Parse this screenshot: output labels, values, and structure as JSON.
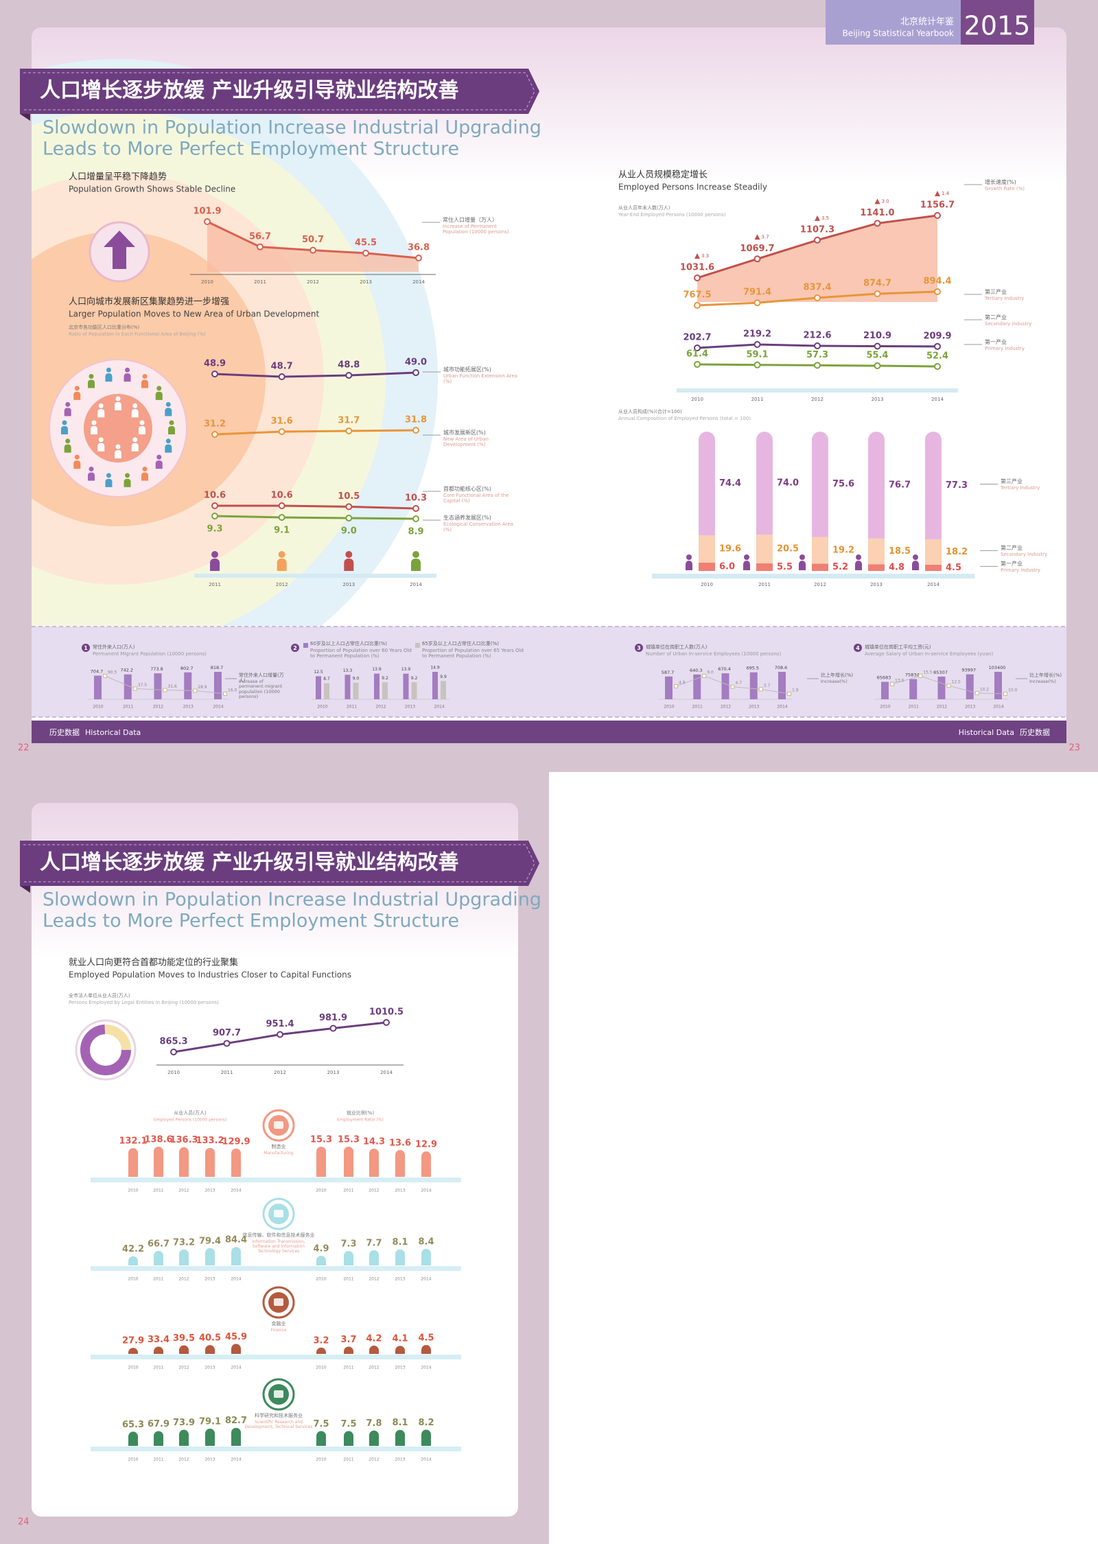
{
  "header": {
    "yearbook_cn": "北京统计年鉴",
    "yearbook_en": "Beijing Statistical Yearbook",
    "year": "2015"
  },
  "pages": [
    {
      "number": "22",
      "title": "人口增长逐步放缓  产业升级引导就业结构改善",
      "subtitle": [
        "Slowdown in Population Increase Industrial Upgrading",
        "Leads to More Perfect Employment Structure"
      ],
      "footer": [
        "历史数据",
        "Historical Data"
      ]
    },
    {
      "number": "23",
      "footer": [
        "Historical Data",
        "历史数据"
      ]
    },
    {
      "number": "24",
      "title": "人口增长逐步放缓  产业升级引导就业结构改善",
      "subtitle": [
        "Slowdown in Population Increase Industrial Upgrading",
        "Leads to More Perfect Employment Structure"
      ]
    }
  ],
  "chart_data": [
    {
      "type": "line",
      "title": "人口增量呈平稳下降趋势",
      "subtitle": "Population Growth Shows Stable Decline",
      "categories": [
        "2010",
        "2011",
        "2012",
        "2013",
        "2014"
      ],
      "series": [
        {
          "name": "常住人口增量（万人）",
          "name_en": "Increase of Permanent Population (10000 persons)",
          "color": "#d9604f",
          "fill": "#f8b9a2",
          "values": [
            101.9,
            56.7,
            50.7,
            45.5,
            36.8
          ]
        }
      ]
    },
    {
      "type": "line",
      "title": "人口向城市发展新区集聚趋势进一步增强",
      "subtitle": "Larger Population Moves to New Area of Urban Development",
      "axis_label": "北京市各功能区人口比重分布(%)",
      "axis_label_en": "Ratio of Population in Each Functional Area of Beijing (%)",
      "categories": [
        "2011",
        "2012",
        "2013",
        "2014"
      ],
      "series": [
        {
          "name": "城市功能拓展区(%)",
          "name_en": "Urban Function Extension Area (%)",
          "color": "#6b3d7e",
          "values": [
            48.9,
            48.7,
            48.8,
            49.0
          ],
          "value_labels": [
            "48.9",
            "48.7",
            "48.8",
            "49.0"
          ]
        },
        {
          "name": "城市发展新区(%)",
          "name_en": "New Area of Urban Development (%)",
          "color": "#e8953a",
          "values": [
            31.2,
            31.6,
            31.7,
            31.8
          ]
        },
        {
          "name": "首都功能核心区(%)",
          "name_en": "Core Functional Area of the Capital (%)",
          "color": "#c0504d",
          "values": [
            10.6,
            10.6,
            10.5,
            10.3
          ]
        },
        {
          "name": "生态涵养发展区(%)",
          "name_en": "Ecological Conservation Area (%)",
          "color": "#7ba33a",
          "values": [
            9.3,
            9.1,
            9.0,
            8.9
          ],
          "value_labels": [
            "9.3",
            "9.1",
            "9.0",
            "8.9"
          ]
        }
      ]
    },
    {
      "type": "line",
      "title": "从业人员规模稳定增长",
      "subtitle": "Employed Persons Increase Steadily",
      "axis_label": "从业人员年末人数(万人)",
      "axis_label_en": "Year-End Employed Persons (10000 persons)",
      "categories": [
        "2010",
        "2011",
        "2012",
        "2013",
        "2014"
      ],
      "series": [
        {
          "color": "#c0504d",
          "fill": "#f7b49a",
          "values": [
            1031.6,
            1069.7,
            1107.3,
            1141.0,
            1156.7
          ],
          "value_labels": [
            "1031.6",
            "1069.7",
            "1107.3",
            "1141.0",
            "1156.7"
          ]
        },
        {
          "name": "增长速度(%)",
          "name_en": "Growth Rate (%)",
          "color": "#c0504d",
          "style": "annotation",
          "values": [
            3.3,
            3.7,
            3.5,
            3.0,
            1.4
          ],
          "value_labels": [
            "3.3",
            "3.7",
            "3.5",
            "3.0",
            "1.4"
          ]
        },
        {
          "name": "第三产业",
          "name_en": "Tertiary Industry",
          "color": "#e8953a",
          "values": [
            767.5,
            791.4,
            837.4,
            874.7,
            894.4
          ]
        },
        {
          "name": "第二产业",
          "name_en": "Secondary Industry",
          "color": "#6b3d7e",
          "values": [
            202.7,
            219.2,
            212.6,
            210.9,
            209.9
          ]
        },
        {
          "name": "第一产业",
          "name_en": "Primary Industry",
          "color": "#7ba33a",
          "values": [
            61.4,
            59.1,
            57.3,
            55.4,
            52.4
          ]
        }
      ]
    },
    {
      "type": "stacked_bar",
      "axis_label": "从业人员构成(%)(合计=100)",
      "axis_label_en": "Annual Composition of Employed Persons (total = 100)",
      "categories": [
        "2010",
        "2011",
        "2012",
        "2013",
        "2014"
      ],
      "series": [
        {
          "name": "第一产业",
          "name_en": "Primary Industry",
          "color": "#f07f73",
          "label_color": "#e04d4d",
          "values": [
            6.0,
            5.5,
            5.2,
            4.8,
            4.5
          ],
          "value_labels": [
            "6.0",
            "5.5",
            "5.2",
            "4.8",
            "4.5"
          ]
        },
        {
          "name": "第二产业",
          "name_en": "Secondary Industry",
          "color": "#fbd0b3",
          "label_color": "#e6922f",
          "values": [
            19.6,
            20.5,
            19.2,
            18.5,
            18.2
          ]
        },
        {
          "name": "第三产业",
          "name_en": "Tertiary Industry",
          "color": "#e6b6e0",
          "label_color": "#7d3b86",
          "values": [
            74.4,
            74.0,
            75.6,
            76.7,
            77.3
          ],
          "value_labels": [
            "74.4",
            "74.0",
            "75.6",
            "76.7",
            "77.3"
          ]
        }
      ]
    },
    {
      "type": "bar_line",
      "marker": "1",
      "categories": [
        "2010",
        "2011",
        "2012",
        "2013",
        "2014"
      ],
      "series": [
        {
          "name": "常住外来人口(万人)",
          "name_en": "Permanent Migrant Population (10000 persons)",
          "color": "#a47cc0",
          "values": [
            704.7,
            742.2,
            773.8,
            802.7,
            818.7
          ]
        },
        {
          "name": "常住外来人口增量(万人)",
          "name_en": "Increase of permanent migrant population (10000 persons)",
          "color": "#c9b98a",
          "values": [
            90.5,
            37.5,
            31.6,
            28.9,
            16.0
          ],
          "value_labels": [
            "90.5",
            "37.5",
            "31.6",
            "28.9",
            "16.0"
          ]
        }
      ]
    },
    {
      "type": "grouped_bar",
      "marker": "2",
      "categories": [
        "2010",
        "2011",
        "2012",
        "2013",
        "2014"
      ],
      "series": [
        {
          "name": "60岁及以上人口占常住人口比重(%)",
          "name_en": "Proportion of Population over 60 Years Old to Permanent Population (%)",
          "color": "#a47cc0",
          "values": [
            12.5,
            13.3,
            13.9,
            13.9,
            14.9
          ]
        },
        {
          "name": "65岁及以上人口占常住人口比重(%)",
          "name_en": "Proportion of Population over 65 Years Old to Permanent Population (%)",
          "color": "#c8c3bd",
          "values": [
            8.7,
            9.0,
            9.2,
            9.2,
            9.9
          ],
          "value_labels": [
            "8.7",
            "9.0",
            "9.2",
            "9.2",
            "9.9"
          ]
        }
      ]
    },
    {
      "type": "bar_line",
      "marker": "3",
      "categories": [
        "2010",
        "2011",
        "2012",
        "2013",
        "2014"
      ],
      "series": [
        {
          "name": "城镇单位在岗职工人数(万人)",
          "name_en": "Number of Urban In-service Employees (10000 persons)",
          "color": "#a47cc0",
          "values": [
            587.7,
            640.3,
            670.4,
            695.5,
            708.6
          ]
        },
        {
          "name": "比上年增长(%)",
          "name_en": "Increase(%)",
          "color": "#c9b98a",
          "values": [
            4.9,
            9.0,
            4.7,
            3.7,
            1.9
          ],
          "value_labels": [
            "4.9",
            "9.0",
            "4.7",
            "3.7",
            "1.9"
          ]
        }
      ]
    },
    {
      "type": "bar_line",
      "marker": "4",
      "categories": [
        "2010",
        "2011",
        "2012",
        "2013",
        "2014"
      ],
      "series": [
        {
          "name": "城镇单位在岗职工平均工资(元)",
          "name_en": "Average Salary of Urban In-service Employees (yuan)",
          "color": "#a47cc0",
          "values": [
            65683,
            75834,
            85307,
            93997,
            103400
          ]
        },
        {
          "name": "比上年增长(%)",
          "name_en": "Increase(%)",
          "color": "#c9b98a",
          "values": [
            13.0,
            15.5,
            12.5,
            10.2,
            10.0
          ],
          "value_labels": [
            "13.0",
            "15.5",
            "12.5",
            "10.2",
            "10.0"
          ]
        }
      ]
    },
    {
      "type": "line",
      "title": "就业人口向更符合首都功能定位的行业聚集",
      "subtitle": "Employed Population Moves to Industries Closer to Capital Functions",
      "axis_label": "全市法人单位从业人员(万人)",
      "axis_label_en": "Persons Employed by Legal Entities in Beijing (10000 persons)",
      "categories": [
        "2010",
        "2011",
        "2012",
        "2013",
        "2014"
      ],
      "series": [
        {
          "color": "#6b3d7e",
          "values": [
            865.3,
            907.7,
            951.4,
            981.9,
            1010.5
          ]
        }
      ]
    },
    {
      "type": "paired_bar",
      "title": "制造业",
      "title_en": "Manufacturing",
      "categories": [
        "2010",
        "2011",
        "2012",
        "2013",
        "2014"
      ],
      "series": [
        {
          "name": "从业人员(万人)",
          "name_en": "Employed Persons (10000 persons)",
          "color": "#f39882",
          "label_color": "#e2574c",
          "values": [
            132.1,
            138.6,
            136.3,
            133.2,
            129.9
          ]
        },
        {
          "name": "就业比例(%)",
          "name_en": "Employment Ratio (%)",
          "color": "#f39882",
          "label_color": "#e2574c",
          "values": [
            15.3,
            15.3,
            14.3,
            13.6,
            12.9
          ]
        }
      ]
    },
    {
      "type": "paired_bar",
      "title": "信息传输、软件和信息技术服务业",
      "title_en": "Information Transmission, Software and Information Technology Services",
      "categories": [
        "2010",
        "2011",
        "2012",
        "2013",
        "2014"
      ],
      "series": [
        {
          "color": "#a9dfe6",
          "label_color": "#948a5d",
          "values": [
            42.2,
            66.7,
            73.2,
            79.4,
            84.4
          ]
        },
        {
          "color": "#a9dfe6",
          "label_color": "#948a5d",
          "values": [
            4.9,
            7.3,
            7.7,
            8.1,
            8.4
          ]
        }
      ]
    },
    {
      "type": "paired_bar",
      "title": "金融业",
      "title_en": "Finance",
      "categories": [
        "2010",
        "2011",
        "2012",
        "2013",
        "2014"
      ],
      "series": [
        {
          "color": "#b45a3f",
          "label_color": "#e0533a",
          "values": [
            27.9,
            33.4,
            39.5,
            40.5,
            45.9
          ]
        },
        {
          "color": "#b45a3f",
          "label_color": "#e0533a",
          "values": [
            3.2,
            3.7,
            4.2,
            4.1,
            4.5
          ]
        }
      ]
    },
    {
      "type": "paired_bar",
      "title": "科学研究和技术服务业",
      "title_en": "Scientific Research and Development, Technical Services",
      "categories": [
        "2010",
        "2011",
        "2012",
        "2013",
        "2014"
      ],
      "series": [
        {
          "color": "#3d8a5d",
          "label_color": "#8a8a55",
          "values": [
            65.3,
            67.9,
            73.9,
            79.1,
            82.7
          ]
        },
        {
          "color": "#3d8a5d",
          "label_color": "#8a8a55",
          "values": [
            7.5,
            7.5,
            7.8,
            8.1,
            8.2
          ]
        }
      ]
    }
  ]
}
